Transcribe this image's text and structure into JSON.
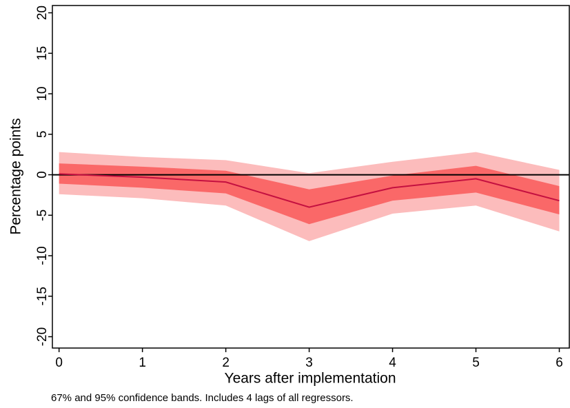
{
  "chart_data": {
    "type": "line",
    "x": [
      0,
      1,
      2,
      3,
      4,
      5,
      6
    ],
    "series": [
      {
        "color": "#c41040",
        "values": [
          0.1,
          -0.3,
          -0.9,
          -4.0,
          -1.6,
          -0.5,
          -3.2
        ]
      }
    ],
    "bands": [
      {
        "color": "#fcbcbc",
        "lower": [
          -2.4,
          -2.9,
          -3.8,
          -8.2,
          -4.8,
          -3.8,
          -7.0
        ],
        "upper": [
          2.8,
          2.2,
          1.8,
          0.2,
          1.6,
          2.8,
          0.6
        ]
      },
      {
        "color": "#fa6868",
        "lower": [
          -1.1,
          -1.6,
          -2.3,
          -6.1,
          -3.2,
          -2.2,
          -4.9
        ],
        "upper": [
          1.4,
          1.0,
          0.5,
          -1.8,
          -0.1,
          1.1,
          -1.4
        ]
      }
    ],
    "hline": 0,
    "xlim": [
      -0.08,
      6.12
    ],
    "xticks": [
      0,
      1,
      2,
      3,
      4,
      5,
      6
    ],
    "ylim": [
      -21.4,
      20.9
    ],
    "yticks": [
      -20,
      -15,
      -10,
      -5,
      0,
      5,
      10,
      15,
      20
    ],
    "xlabel": "Years after implementation",
    "ylabel": "Percentage points",
    "note": "67% and 95% confidence bands. Includes 4 lags of all regressors."
  }
}
